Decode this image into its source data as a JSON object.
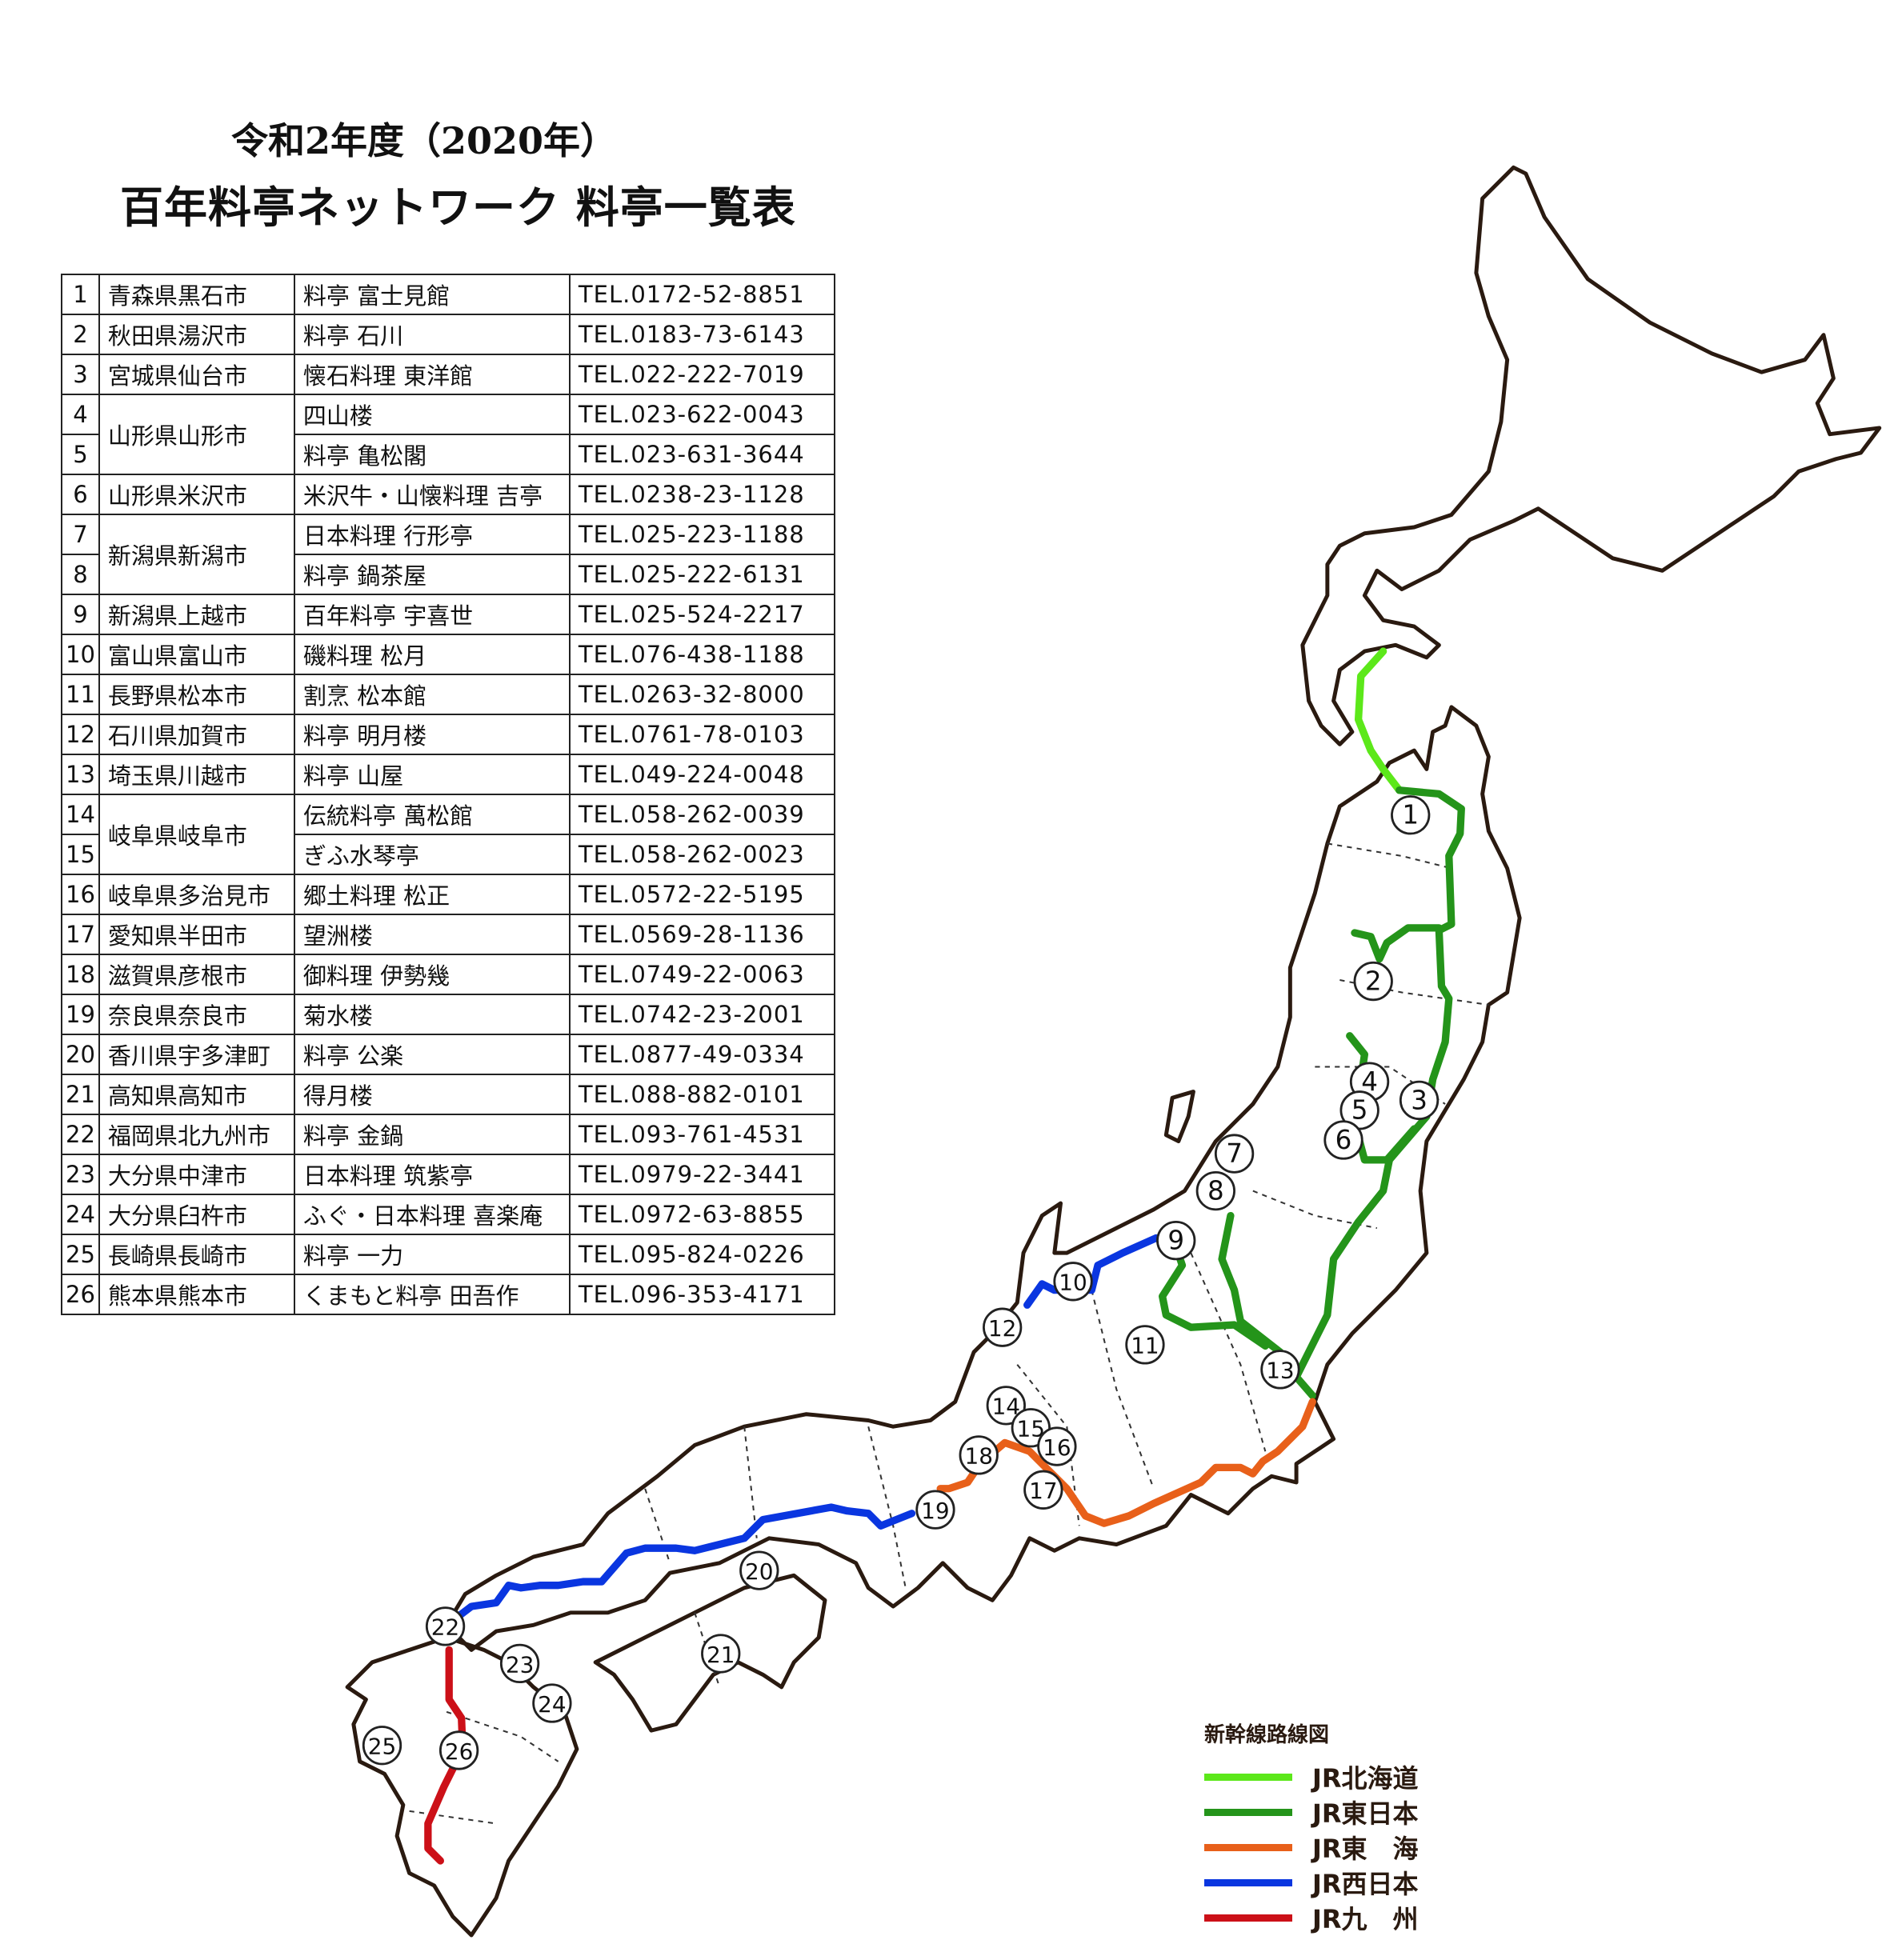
{
  "title": {
    "line1": "令和2年度（2020年）",
    "line2": "百年料亭ネットワーク 料亭一覧表"
  },
  "restaurants": [
    {
      "no": "1",
      "pref": "青森県黒石市",
      "name": "料亭 富士見館",
      "tel": "TEL.0172-52-8851"
    },
    {
      "no": "2",
      "pref": "秋田県湯沢市",
      "name": "料亭 石川",
      "tel": "TEL.0183-73-6143"
    },
    {
      "no": "3",
      "pref": "宮城県仙台市",
      "name": "懐石料理 東洋館",
      "tel": "TEL.022-222-7019"
    },
    {
      "no": "4",
      "pref": "山形県山形市",
      "name": "四山楼",
      "tel": "TEL.023-622-0043"
    },
    {
      "no": "5",
      "pref": "山形県山形市",
      "name": "料亭 亀松閣",
      "tel": "TEL.023-631-3644"
    },
    {
      "no": "6",
      "pref": "山形県米沢市",
      "name": "米沢牛・山懐料理 吉亭",
      "tel": "TEL.0238-23-1128"
    },
    {
      "no": "7",
      "pref": "新潟県新潟市",
      "name": "日本料理 行形亭",
      "tel": "TEL.025-223-1188"
    },
    {
      "no": "8",
      "pref": "新潟県新潟市",
      "name": "料亭 鍋茶屋",
      "tel": "TEL.025-222-6131"
    },
    {
      "no": "9",
      "pref": "新潟県上越市",
      "name": "百年料亭 宇喜世",
      "tel": "TEL.025-524-2217"
    },
    {
      "no": "10",
      "pref": "富山県富山市",
      "name": "磯料理 松月",
      "tel": "TEL.076-438-1188"
    },
    {
      "no": "11",
      "pref": "長野県松本市",
      "name": "割烹 松本館",
      "tel": "TEL.0263-32-8000"
    },
    {
      "no": "12",
      "pref": "石川県加賀市",
      "name": "料亭 明月楼",
      "tel": "TEL.0761-78-0103"
    },
    {
      "no": "13",
      "pref": "埼玉県川越市",
      "name": "料亭 山屋",
      "tel": "TEL.049-224-0048"
    },
    {
      "no": "14",
      "pref": "岐阜県岐阜市",
      "name": "伝統料亭 萬松館",
      "tel": "TEL.058-262-0039"
    },
    {
      "no": "15",
      "pref": "岐阜県岐阜市",
      "name": "ぎふ水琴亭",
      "tel": "TEL.058-262-0023"
    },
    {
      "no": "16",
      "pref": "岐阜県多治見市",
      "name": "郷土料理 松正",
      "tel": "TEL.0572-22-5195"
    },
    {
      "no": "17",
      "pref": "愛知県半田市",
      "name": "望洲楼",
      "tel": "TEL.0569-28-1136"
    },
    {
      "no": "18",
      "pref": "滋賀県彦根市",
      "name": "御料理 伊勢幾",
      "tel": "TEL.0749-22-0063"
    },
    {
      "no": "19",
      "pref": "奈良県奈良市",
      "name": "菊水楼",
      "tel": "TEL.0742-23-2001"
    },
    {
      "no": "20",
      "pref": "香川県宇多津町",
      "name": "料亭 公楽",
      "tel": "TEL.0877-49-0334"
    },
    {
      "no": "21",
      "pref": "高知県高知市",
      "name": "得月楼",
      "tel": "TEL.088-882-0101"
    },
    {
      "no": "22",
      "pref": "福岡県北九州市",
      "name": "料亭 金鍋",
      "tel": "TEL.093-761-4531"
    },
    {
      "no": "23",
      "pref": "大分県中津市",
      "name": "日本料理 筑紫亭",
      "tel": "TEL.0979-22-3441"
    },
    {
      "no": "24",
      "pref": "大分県臼杵市",
      "name": "ふぐ・日本料理 喜楽庵",
      "tel": "TEL.0972-63-8855"
    },
    {
      "no": "25",
      "pref": "長崎県長崎市",
      "name": "料亭 一力",
      "tel": "TEL.095-824-0226"
    },
    {
      "no": "26",
      "pref": "熊本県熊本市",
      "name": "くまもと料亭 田吾作",
      "tel": "TEL.096-353-4171"
    }
  ],
  "legend": {
    "title": "新幹線路線図",
    "items": [
      {
        "label": "JR北海道",
        "color": "#5ce81a"
      },
      {
        "label": "JR東日本",
        "color": "#24941a"
      },
      {
        "label": "JR東　海",
        "color": "#e8601a"
      },
      {
        "label": "JR西日本",
        "color": "#0a36e0"
      },
      {
        "label": "JR九　州",
        "color": "#cc1018"
      }
    ]
  },
  "map": {
    "outline_color": "#2a1a10"
  }
}
